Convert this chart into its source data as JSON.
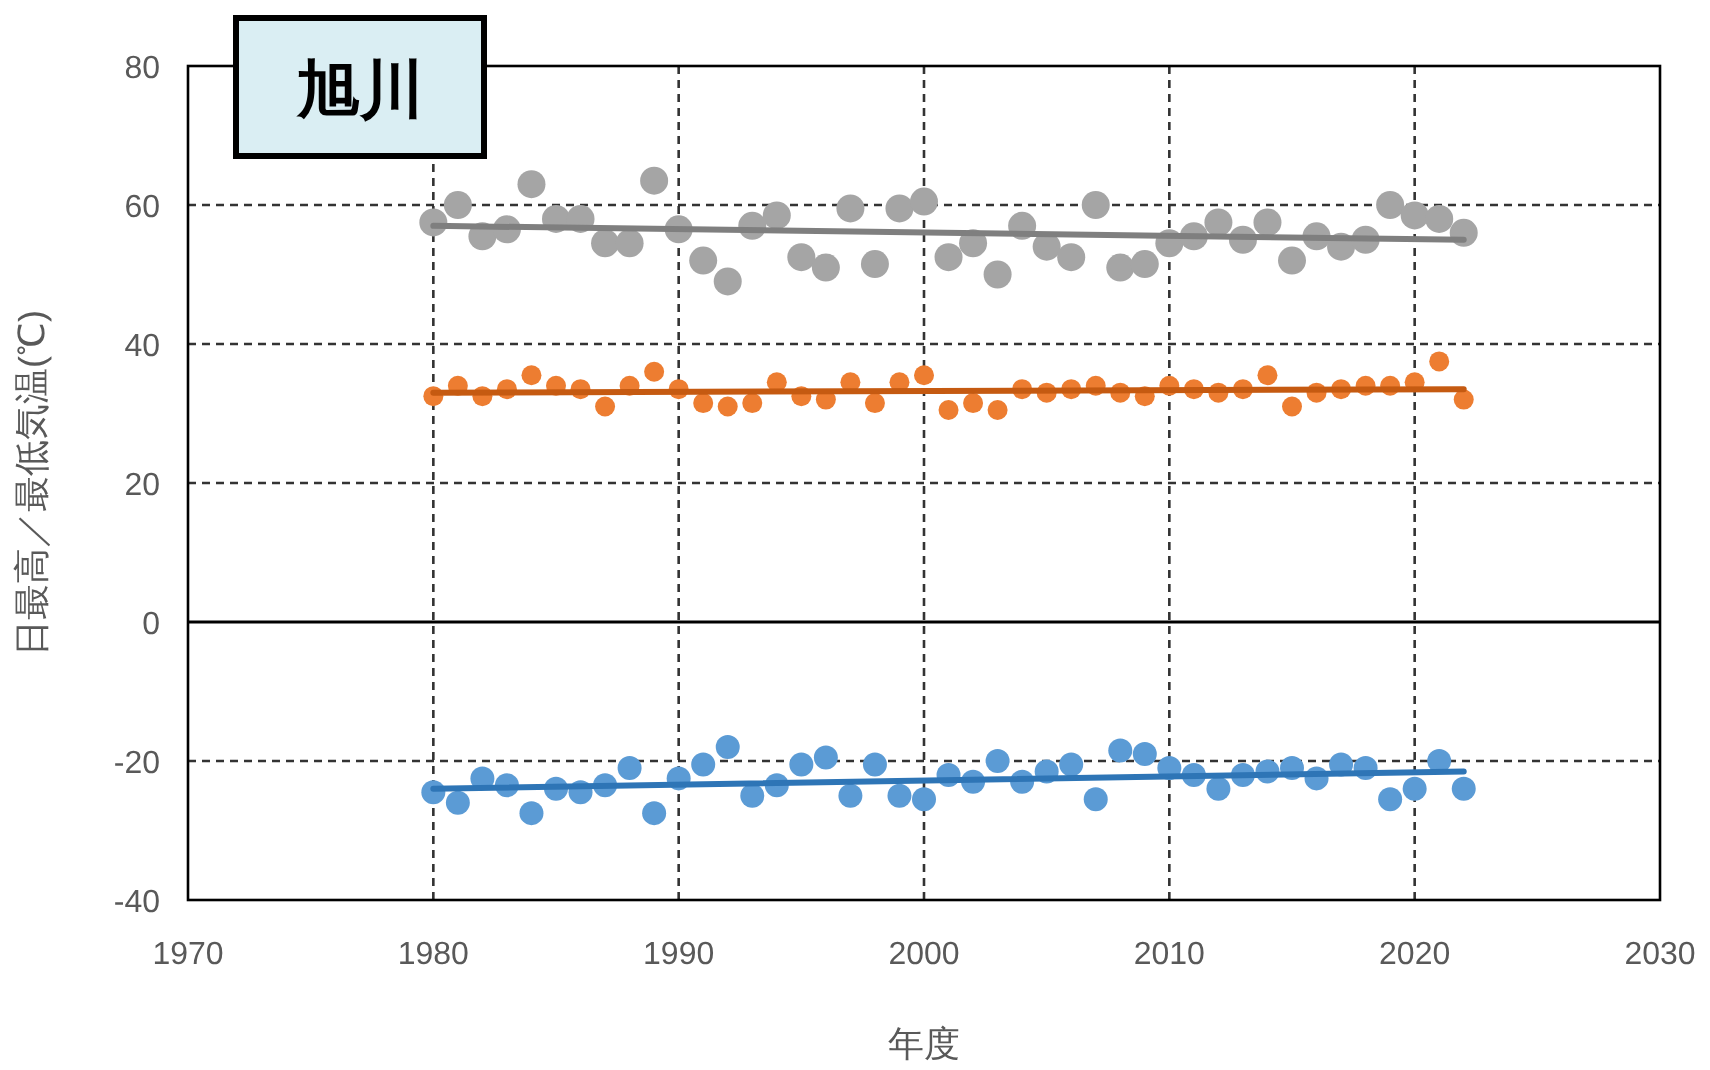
{
  "chart_data": {
    "type": "scatter",
    "title": "旭川",
    "xlabel": "年度",
    "ylabel": "日最高／最低気温(℃)",
    "x": [
      1980,
      1981,
      1982,
      1983,
      1984,
      1985,
      1986,
      1987,
      1988,
      1989,
      1990,
      1991,
      1992,
      1993,
      1994,
      1995,
      1996,
      1997,
      1998,
      1999,
      2000,
      2001,
      2002,
      2003,
      2004,
      2005,
      2006,
      2007,
      2008,
      2009,
      2010,
      2011,
      2012,
      2013,
      2014,
      2015,
      2016,
      2017,
      2018,
      2019,
      2020,
      2021,
      2022
    ],
    "series": [
      {
        "color": "#a5a5a5",
        "marker": "circle",
        "values": [
          57.5,
          60,
          55.5,
          56.5,
          63,
          58,
          58,
          54.5,
          54.5,
          63.5,
          56.5,
          52,
          49,
          57,
          58.5,
          52.5,
          51,
          59.5,
          51.5,
          59.5,
          60.5,
          52.5,
          54.5,
          50,
          57,
          54,
          52.5,
          60,
          51,
          51.5,
          54.5,
          55.5,
          57.5,
          55,
          57.5,
          52,
          55.5,
          54,
          55,
          60,
          58.5,
          58,
          56
        ]
      },
      {
        "color": "#ed7d31",
        "marker": "circle",
        "values": [
          32.5,
          34,
          32.5,
          33.5,
          35.5,
          34,
          33.5,
          31,
          34,
          36,
          33.5,
          31.5,
          31,
          31.5,
          34.5,
          32.5,
          32,
          34.5,
          31.5,
          34.5,
          35.5,
          30.5,
          31.5,
          30.5,
          33.5,
          33,
          33.5,
          34,
          33,
          32.5,
          34,
          33.5,
          33,
          33.5,
          35.5,
          31,
          33,
          33.5,
          34,
          34,
          34.5,
          37.5,
          32
        ]
      },
      {
        "color": "#5b9bd5",
        "marker": "circle",
        "values": [
          -24.5,
          -26,
          -22.5,
          -23.5,
          -27.5,
          -24,
          -24.5,
          -23.5,
          -21,
          -27.5,
          -22.5,
          -20.5,
          -18,
          -25,
          -23.5,
          -20.5,
          -19.5,
          -25,
          -20.5,
          -25,
          -25.5,
          -22,
          -23,
          -20,
          -23,
          -21.5,
          -20.5,
          -25.5,
          -18.5,
          -19,
          -21,
          -22,
          -24,
          -22,
          -21.5,
          -21,
          -22.5,
          -20.5,
          -21,
          -25.5,
          -24,
          -20,
          -24
        ]
      },
      {
        "type": "line",
        "marker": "none",
        "color": "#7f7f7f",
        "values": [
          57,
          null,
          null,
          null,
          null,
          null,
          null,
          null,
          null,
          null,
          null,
          null,
          null,
          null,
          null,
          null,
          null,
          null,
          null,
          null,
          null,
          null,
          null,
          null,
          null,
          null,
          null,
          null,
          null,
          null,
          null,
          null,
          null,
          null,
          null,
          null,
          null,
          null,
          null,
          null,
          null,
          null,
          55
        ]
      },
      {
        "type": "line",
        "marker": "none",
        "color": "#c55a11",
        "values": [
          33,
          null,
          null,
          null,
          null,
          null,
          null,
          null,
          null,
          null,
          null,
          null,
          null,
          null,
          null,
          null,
          null,
          null,
          null,
          null,
          null,
          null,
          null,
          null,
          null,
          null,
          null,
          null,
          null,
          null,
          null,
          null,
          null,
          null,
          null,
          null,
          null,
          null,
          null,
          null,
          null,
          null,
          33.5
        ]
      },
      {
        "type": "line",
        "marker": "none",
        "color": "#2e75b6",
        "values": [
          -24,
          null,
          null,
          null,
          null,
          null,
          null,
          null,
          null,
          null,
          null,
          null,
          null,
          null,
          null,
          null,
          null,
          null,
          null,
          null,
          null,
          null,
          null,
          null,
          null,
          null,
          null,
          null,
          null,
          null,
          null,
          null,
          null,
          null,
          null,
          null,
          null,
          null,
          null,
          null,
          null,
          null,
          -21.5
        ]
      }
    ],
    "xlim": [
      1970,
      2030
    ],
    "xticks": [
      1970,
      1980,
      1990,
      2000,
      2010,
      2020,
      2030
    ],
    "ylim": [
      -40,
      80
    ],
    "yticks": [
      -40,
      -20,
      0,
      20,
      40,
      60,
      80
    ],
    "grid": true
  }
}
